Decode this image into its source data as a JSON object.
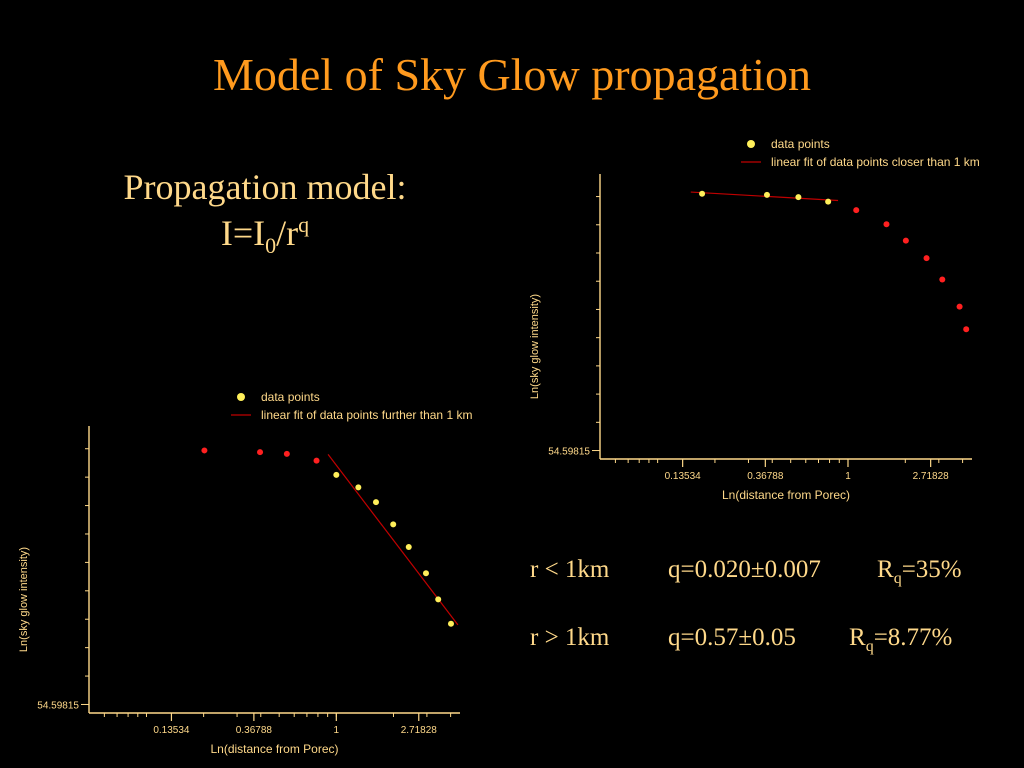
{
  "title": "Model of Sky Glow propagation",
  "model": {
    "heading": "Propagation model:",
    "eq_lhs": "I=I",
    "eq_sub": "0",
    "eq_mid": "/r",
    "eq_sup": "q"
  },
  "results": [
    {
      "condition": "r < 1km",
      "q": "q=0.020±0.007",
      "r_label": "R",
      "r_sub": "q",
      "r_value": "=35%"
    },
    {
      "condition": "r > 1km",
      "q": "q=0.57±0.05",
      "r_label": "R",
      "r_sub": "q",
      "r_value": "=8.77%"
    }
  ],
  "colors": {
    "title": "#ff9a1e",
    "text": "#ffd98a",
    "axis": "#ffd98a",
    "yellow_points": "#ffef5a",
    "red_points": "#ff2020",
    "fit_line": "#c00000"
  },
  "chart_data": [
    {
      "type": "scatter",
      "xlabel": "Ln(distance from Porec)",
      "ylabel": "Ln(sky glow intensity)",
      "xscale": "log",
      "xticks": [
        0.13534,
        0.36788,
        1,
        2.71828
      ],
      "xtick_labels": [
        "0.13534",
        "0.36788",
        "1",
        "2.71828"
      ],
      "ytick_label": "54.59815",
      "ytick_label_value": 4.0,
      "xlim": [
        0.0498,
        4.4817
      ],
      "ylim": [
        3.85,
        8.9
      ],
      "legend_placement": "top-right",
      "series": [
        {
          "name": "data points",
          "color": "yellow",
          "x": [
            0.1712,
            0.3753,
            0.5488,
            0.7866
          ],
          "y": [
            8.55,
            8.53,
            8.49,
            8.41
          ]
        },
        {
          "name": "",
          "color": "red",
          "x": [
            1.105,
            1.593,
            2.014,
            2.586,
            3.129,
            3.857,
            4.179
          ],
          "y": [
            8.26,
            8.01,
            7.72,
            7.41,
            7.03,
            6.55,
            6.15
          ]
        }
      ],
      "fit": {
        "name": "linear fit of data points closer than 1 km",
        "x": [
          0.1493,
          0.8869
        ],
        "y": [
          8.58,
          8.43
        ]
      }
    },
    {
      "type": "scatter",
      "xlabel": "Ln(distance from Porec)",
      "ylabel": "Ln(sky glow intensity)",
      "xscale": "log",
      "xticks": [
        0.13534,
        0.36788,
        1,
        2.71828
      ],
      "xtick_labels": [
        "0.13534",
        "0.36788",
        "1",
        "2.71828"
      ],
      "ytick_label": "54.59815",
      "ytick_label_value": 4.0,
      "xlim": [
        0.0498,
        4.4817
      ],
      "ylim": [
        3.85,
        8.9
      ],
      "legend_placement": "top-right",
      "series": [
        {
          "name": "",
          "color": "red",
          "x": [
            0.2019,
            0.3964,
            0.5488,
            0.7866
          ],
          "y": [
            8.47,
            8.44,
            8.41,
            8.29
          ]
        },
        {
          "name": "data points",
          "color": "yellow",
          "x": [
            1.0,
            1.306,
            1.618,
            1.994,
            2.407,
            2.967,
            3.441,
            4.018
          ],
          "y": [
            8.04,
            7.82,
            7.56,
            7.17,
            6.77,
            6.31,
            5.85,
            5.42
          ]
        }
      ],
      "fit": {
        "name": "linear fit of data points further than 1 km",
        "x": [
          0.9048,
          4.3687
        ],
        "y": [
          8.4,
          5.4
        ]
      }
    }
  ]
}
